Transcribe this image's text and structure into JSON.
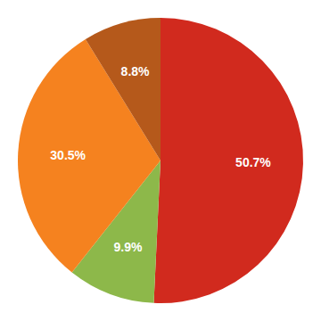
{
  "chart_data": {
    "type": "pie",
    "values": [
      50.7,
      9.9,
      30.5,
      8.8
    ],
    "value_labels": [
      "50.7%",
      "9.9%",
      "30.5%",
      "8.8%"
    ],
    "colors": [
      "#d12a1e",
      "#8db84a",
      "#f5821f",
      "#b5591b"
    ],
    "data_labels": true
  }
}
